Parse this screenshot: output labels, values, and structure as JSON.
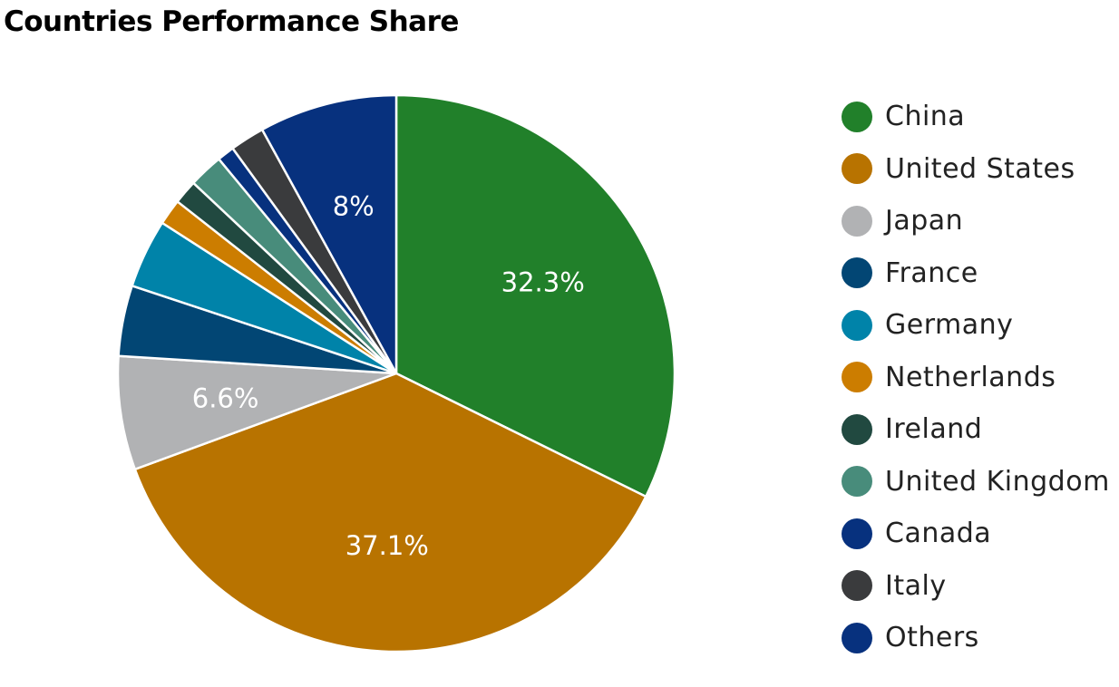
{
  "chart_data": {
    "type": "pie",
    "title": "Countries Performance Share",
    "start": "12 o'clock",
    "direction": "clockwise",
    "legend": "right",
    "slices": [
      {
        "label": "China",
        "value": 32.3,
        "color": "#21802a",
        "data_label": "32.3%"
      },
      {
        "label": "United States",
        "value": 37.1,
        "color": "#b87300",
        "data_label": "37.1%"
      },
      {
        "label": "Japan",
        "value": 6.6,
        "color": "#b1b2b4",
        "data_label": "6.6%"
      },
      {
        "label": "France",
        "value": 4.1,
        "color": "#024674",
        "data_label": ""
      },
      {
        "label": "Germany",
        "value": 4.0,
        "color": "#0083a9",
        "data_label": ""
      },
      {
        "label": "Netherlands",
        "value": 1.5,
        "color": "#cc7d00",
        "data_label": ""
      },
      {
        "label": "Ireland",
        "value": 1.4,
        "color": "#214940",
        "data_label": ""
      },
      {
        "label": "United Kingdom",
        "value": 2.0,
        "color": "#488c7b",
        "data_label": ""
      },
      {
        "label": "Canada",
        "value": 1.0,
        "color": "#07317e",
        "data_label": ""
      },
      {
        "label": "Italy",
        "value": 2.0,
        "color": "#3a3b3d",
        "data_label": ""
      },
      {
        "label": "Others",
        "value": 8.0,
        "color": "#07317e",
        "data_label": "8%"
      }
    ]
  }
}
